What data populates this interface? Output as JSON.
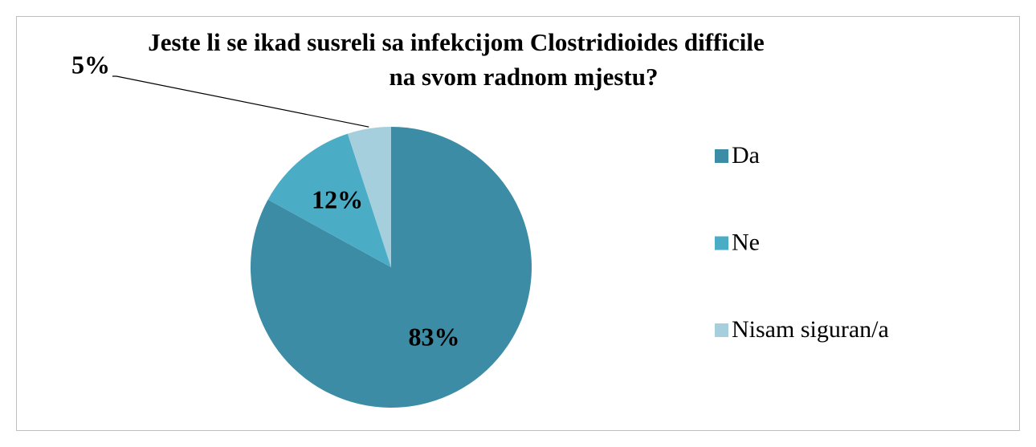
{
  "chart_data": {
    "type": "pie",
    "title": [
      "Jeste li se ikad susreli sa infekcijom Clostridioides difficile",
      "na svom radnom mjestu?"
    ],
    "categories": [
      "Da",
      "Ne",
      "Nisam siguran/a"
    ],
    "values": [
      83,
      12,
      5
    ],
    "value_labels": [
      "83%",
      "12%",
      "5%"
    ],
    "colors": [
      "#3d8ca5",
      "#4bacc6",
      "#a5cfdc"
    ],
    "legend": "right"
  }
}
